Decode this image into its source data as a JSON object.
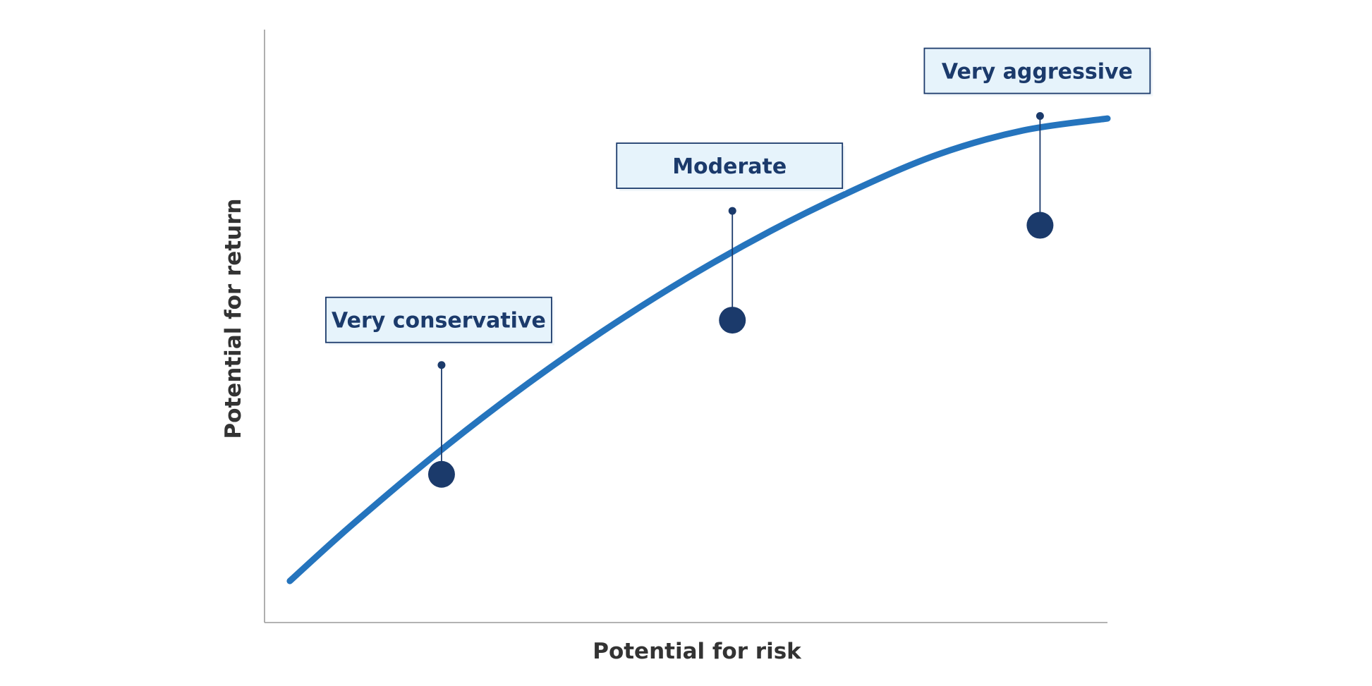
{
  "chart_data": {
    "type": "line",
    "title": "",
    "xlabel": "Potential for risk",
    "ylabel": "Potential for return",
    "xlim": [
      0,
      100
    ],
    "ylim": [
      0,
      100
    ],
    "grid": false,
    "legend": "none",
    "series": [
      {
        "x": [
          3,
          10,
          20,
          30,
          40,
          50,
          60,
          70,
          80,
          90,
          100
        ],
        "y": [
          7,
          16,
          28,
          39,
          49,
          58,
          66,
          73,
          79,
          83,
          85
        ]
      }
    ],
    "annotations": [
      {
        "label": "Very conservative",
        "x": 21,
        "y": 25,
        "label_y": 47
      },
      {
        "label": "Moderate",
        "x": 55.5,
        "y": 51,
        "label_y": 73
      },
      {
        "label": "Very aggressive",
        "x": 92,
        "y": 67,
        "label_y": 89
      }
    ],
    "colors": {
      "curve": "#2574bd",
      "marker": "#1b3a6b",
      "label_fill": "#e6f3fb",
      "label_border": "#1b3a6b",
      "axis": "#9a9a9a",
      "axis_title": "#333333"
    }
  }
}
